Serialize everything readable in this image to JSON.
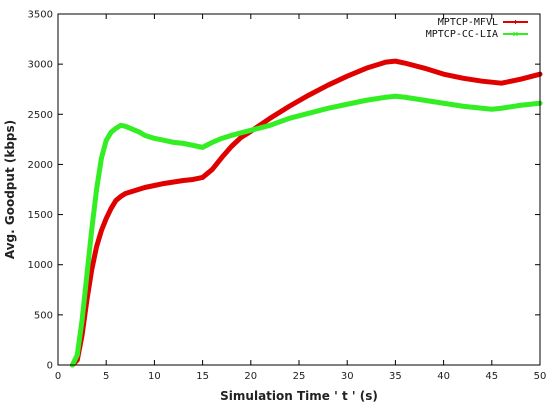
{
  "chart_data": {
    "type": "line",
    "title": "",
    "xlabel": "Simulation Time ' t ' (s)",
    "ylabel": "Avg. Goodput (kbps)",
    "xlim": [
      0,
      50
    ],
    "ylim": [
      0,
      3500
    ],
    "xticks": [
      0,
      5,
      10,
      15,
      20,
      25,
      30,
      35,
      40,
      45,
      50
    ],
    "yticks": [
      0,
      500,
      1000,
      1500,
      2000,
      2500,
      3000,
      3500
    ],
    "xtick_labels": [
      "0",
      "5",
      "10",
      "15",
      "20",
      "25",
      "30",
      "35",
      "40",
      "45",
      "50"
    ],
    "ytick_labels": [
      "0",
      "500",
      "1000",
      "1500",
      "2000",
      "2500",
      "3000",
      "3500"
    ],
    "grid": false,
    "legend_position": "top-right",
    "series": [
      {
        "name": "MPTCP-MFVL",
        "color": "#e00000",
        "marker": "plus",
        "x": [
          1.5,
          2,
          2.5,
          3,
          3.5,
          4,
          4.5,
          5,
          5.5,
          6,
          6.5,
          7,
          8,
          9,
          10,
          11,
          12,
          13,
          14,
          15,
          16,
          17,
          18,
          19,
          20,
          22,
          24,
          26,
          28,
          30,
          32,
          34,
          35,
          36,
          38,
          40,
          42,
          44,
          46,
          48,
          50
        ],
        "y": [
          0,
          50,
          300,
          650,
          950,
          1180,
          1340,
          1460,
          1560,
          1640,
          1680,
          1710,
          1740,
          1770,
          1790,
          1810,
          1825,
          1840,
          1850,
          1870,
          1950,
          2070,
          2180,
          2270,
          2330,
          2460,
          2580,
          2690,
          2790,
          2880,
          2960,
          3020,
          3030,
          3010,
          2960,
          2900,
          2860,
          2830,
          2810,
          2850,
          2900
        ]
      },
      {
        "name": "MPTCP-CC-LIA",
        "color": "#33ee22",
        "marker": "x",
        "x": [
          1.5,
          2,
          2.5,
          3,
          3.5,
          4,
          4.5,
          5,
          5.5,
          6,
          6.5,
          7,
          7.5,
          8,
          8.5,
          9,
          10,
          11,
          12,
          13,
          14,
          15,
          16,
          17,
          18,
          20,
          22,
          24,
          26,
          28,
          30,
          32,
          34,
          35,
          36,
          38,
          40,
          42,
          44,
          45,
          46,
          48,
          50
        ],
        "y": [
          0,
          100,
          450,
          900,
          1350,
          1750,
          2060,
          2240,
          2320,
          2360,
          2390,
          2380,
          2360,
          2340,
          2320,
          2290,
          2260,
          2240,
          2220,
          2210,
          2190,
          2170,
          2220,
          2260,
          2290,
          2340,
          2390,
          2460,
          2510,
          2560,
          2600,
          2640,
          2670,
          2680,
          2670,
          2640,
          2610,
          2580,
          2560,
          2550,
          2560,
          2590,
          2610
        ]
      }
    ]
  }
}
